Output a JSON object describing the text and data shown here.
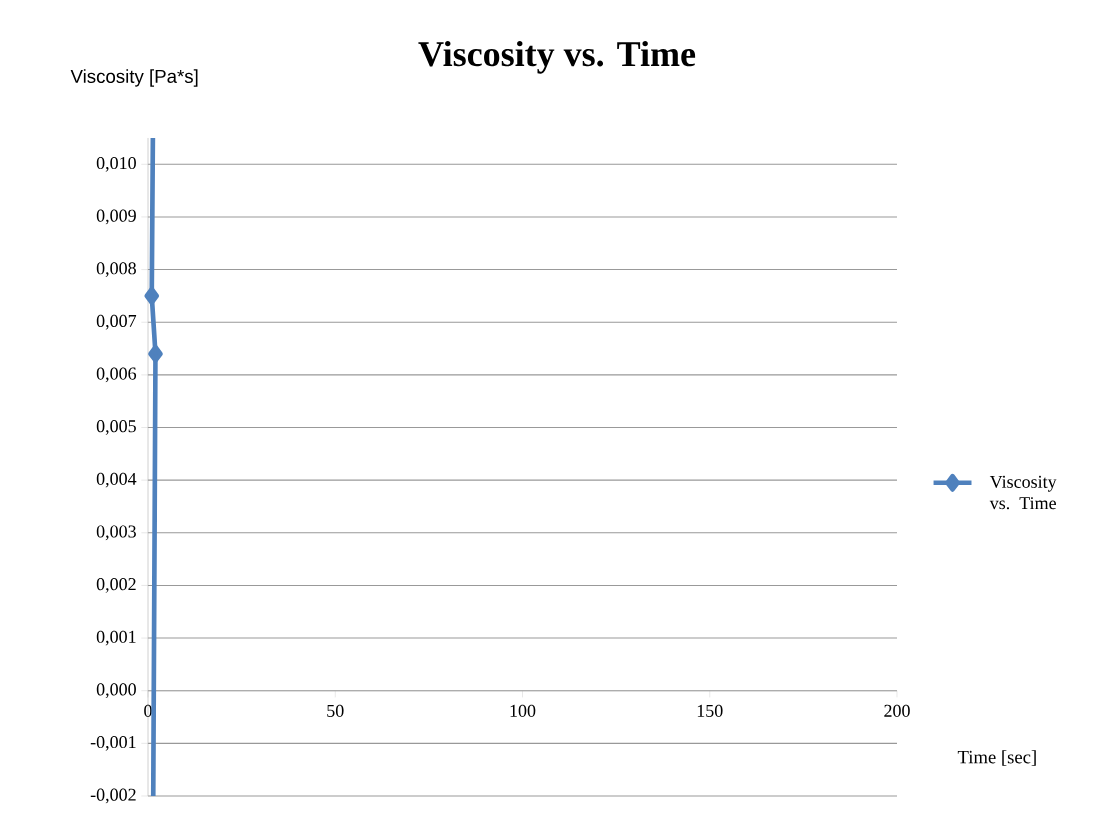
{
  "chart_data": {
    "type": "line",
    "title": "Viscosity vs. Time",
    "xlabel": "Time [sec]",
    "ylabel": "Viscosity [Pa*s]",
    "series": [
      {
        "name": "Viscosity vs. Time",
        "color": "#4f81bd",
        "x": [
          1.3,
          1,
          2,
          1.4
        ],
        "values": [
          0.0105,
          0.0075,
          0.0064,
          -0.002
        ]
      }
    ],
    "xlim": [
      0,
      200
    ],
    "xticks": [
      0,
      50,
      100,
      150,
      200
    ],
    "ylim": [
      -0.002,
      0.0105
    ],
    "yticks": [
      {
        "value": -0.002,
        "label": "-0,002"
      },
      {
        "value": -0.001,
        "label": "-0,001"
      },
      {
        "value": 0,
        "label": "0,000"
      },
      {
        "value": 0.001,
        "label": "0,001"
      },
      {
        "value": 0.002,
        "label": "0,002"
      },
      {
        "value": 0.003,
        "label": "0,003"
      },
      {
        "value": 0.004,
        "label": "0,004"
      },
      {
        "value": 0.005,
        "label": "0,005"
      },
      {
        "value": 0.006,
        "label": "0,006"
      },
      {
        "value": 0.007,
        "label": "0,007"
      },
      {
        "value": 0.008,
        "label": "0,008"
      },
      {
        "value": 0.009,
        "label": "0,009"
      },
      {
        "value": 0.01,
        "label": "0,010"
      }
    ],
    "grid": "y",
    "legend": "right",
    "marker": "diamond",
    "line_style": "solid"
  }
}
